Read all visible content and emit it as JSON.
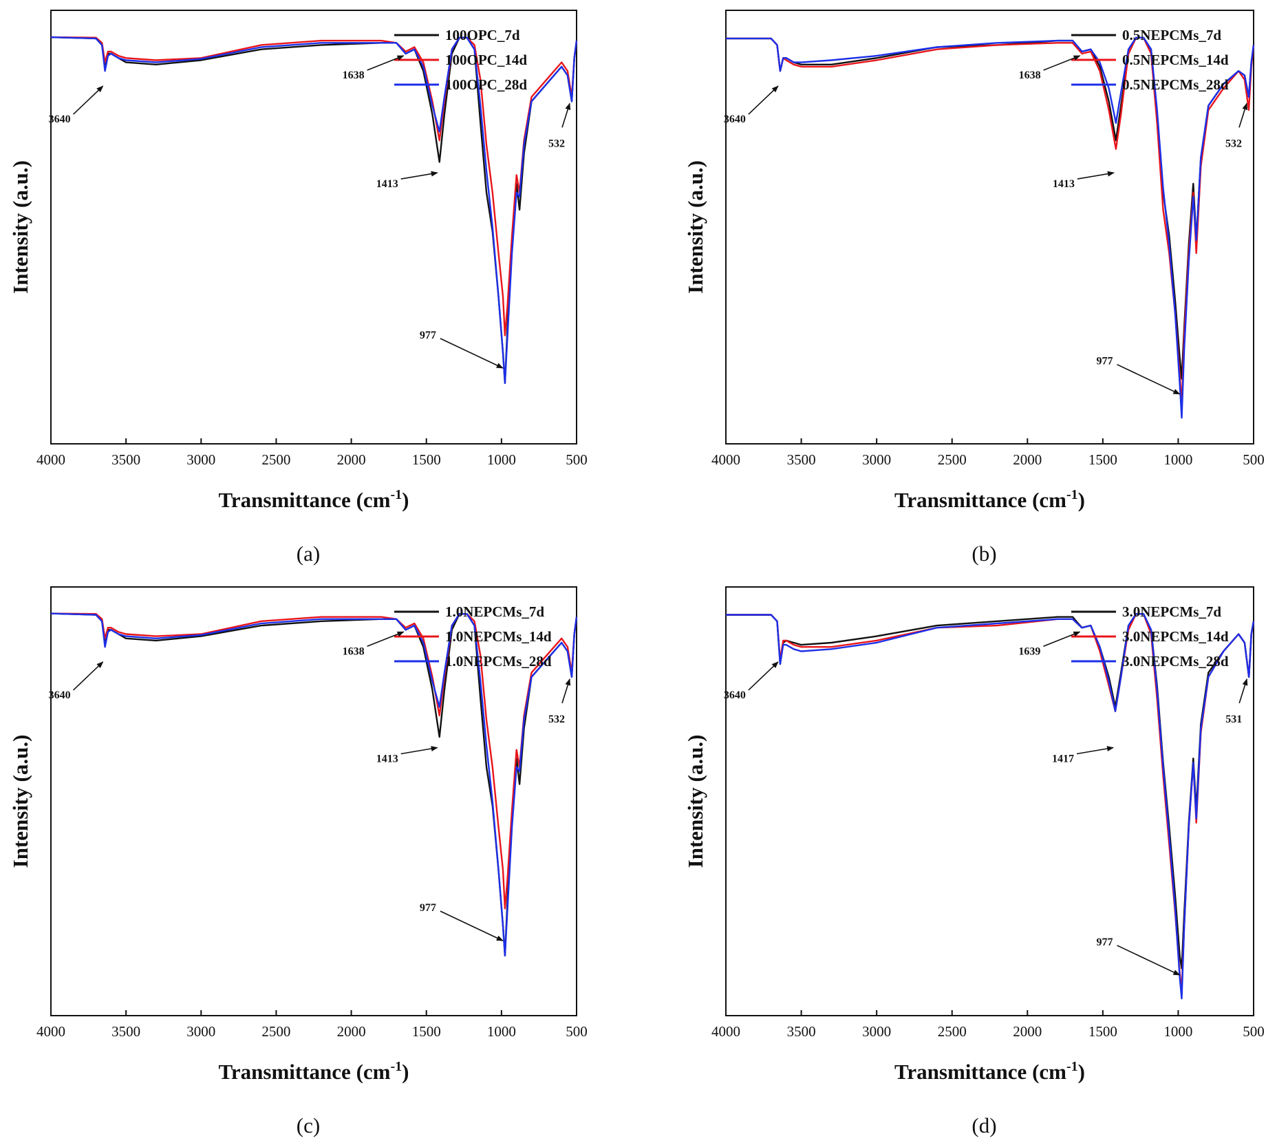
{
  "figure": {
    "panels": [
      "(a)",
      "(b)",
      "(c)",
      "(d)"
    ]
  },
  "colors": {
    "series_7d": "#111111",
    "series_14d": "#e8151b",
    "series_28d": "#1c2fe8"
  },
  "chart_data": [
    {
      "type": "line",
      "panel_label": "(a)",
      "xlabel": "Transmittance (cm",
      "xlabel_sup": "-1",
      "xlabel_close": ")",
      "ylabel": "Intensity (a.u.)",
      "xlim": [
        4000,
        500
      ],
      "ylim": [
        0,
        1
      ],
      "xticks": [
        "4000",
        "3500",
        "3000",
        "2500",
        "2000",
        "1500",
        "1000",
        "500"
      ],
      "legend": [
        "100OPC_7d",
        "100OPC_14d",
        "100OPC_28d"
      ],
      "annotations": [
        {
          "text": "3640",
          "x": 3640,
          "y": 0.83
        },
        {
          "text": "1638",
          "x": 1638,
          "y": 0.9
        },
        {
          "text": "1413",
          "x": 1413,
          "y": 0.63
        },
        {
          "text": "532",
          "x": 532,
          "y": 0.79
        },
        {
          "text": "977",
          "x": 977,
          "y": 0.17
        }
      ],
      "x": [
        4000,
        3700,
        3660,
        3640,
        3620,
        3600,
        3550,
        3500,
        3300,
        3000,
        2600,
        2200,
        1800,
        1700,
        1638,
        1580,
        1520,
        1460,
        1413,
        1380,
        1330,
        1280,
        1230,
        1180,
        1140,
        1100,
        1060,
        1020,
        990,
        977,
        960,
        930,
        900,
        880,
        850,
        800,
        700,
        600,
        560,
        532,
        515,
        500
      ],
      "series": [
        {
          "name": "100OPC_7d",
          "values": [
            0.938,
            0.935,
            0.92,
            0.87,
            0.9,
            0.9,
            0.89,
            0.88,
            0.875,
            0.885,
            0.91,
            0.92,
            0.925,
            0.925,
            0.9,
            0.91,
            0.86,
            0.76,
            0.65,
            0.76,
            0.9,
            0.937,
            0.937,
            0.91,
            0.74,
            0.58,
            0.49,
            0.34,
            0.21,
            0.14,
            0.27,
            0.46,
            0.6,
            0.54,
            0.67,
            0.79,
            0.83,
            0.87,
            0.85,
            0.79,
            0.89,
            0.93
          ]
        },
        {
          "name": "100OPC_14d",
          "values": [
            0.938,
            0.937,
            0.925,
            0.88,
            0.905,
            0.905,
            0.895,
            0.89,
            0.885,
            0.89,
            0.92,
            0.93,
            0.93,
            0.925,
            0.905,
            0.915,
            0.88,
            0.79,
            0.7,
            0.79,
            0.91,
            0.937,
            0.937,
            0.92,
            0.84,
            0.69,
            0.58,
            0.44,
            0.34,
            0.25,
            0.32,
            0.48,
            0.62,
            0.58,
            0.7,
            0.8,
            0.84,
            0.88,
            0.86,
            0.8,
            0.89,
            0.93
          ]
        },
        {
          "name": "100OPC_28d",
          "values": [
            0.938,
            0.935,
            0.92,
            0.86,
            0.895,
            0.9,
            0.89,
            0.885,
            0.88,
            0.888,
            0.915,
            0.925,
            0.925,
            0.925,
            0.9,
            0.91,
            0.87,
            0.78,
            0.72,
            0.8,
            0.91,
            0.937,
            0.937,
            0.91,
            0.78,
            0.63,
            0.5,
            0.34,
            0.21,
            0.14,
            0.25,
            0.44,
            0.58,
            0.57,
            0.69,
            0.79,
            0.83,
            0.87,
            0.85,
            0.79,
            0.89,
            0.93
          ]
        }
      ]
    },
    {
      "type": "line",
      "panel_label": "(b)",
      "xlabel": "Transmittance (cm",
      "xlabel_sup": "-1",
      "xlabel_close": ")",
      "ylabel": "Intensity (a.u.)",
      "xlim": [
        4000,
        500
      ],
      "ylim": [
        0,
        1
      ],
      "xticks": [
        "4000",
        "3500",
        "3000",
        "2500",
        "2000",
        "1500",
        "1000",
        "500"
      ],
      "legend": [
        "0.5NEPCMs_7d",
        "0.5NEPCMs_14d",
        "0.5NEPCMs_28d"
      ],
      "annotations": [
        {
          "text": "3640",
          "x": 3640,
          "y": 0.83
        },
        {
          "text": "1638",
          "x": 1638,
          "y": 0.9
        },
        {
          "text": "1413",
          "x": 1413,
          "y": 0.63
        },
        {
          "text": "532",
          "x": 532,
          "y": 0.79
        },
        {
          "text": "977",
          "x": 977,
          "y": 0.11
        }
      ],
      "x": [
        4000,
        3700,
        3660,
        3640,
        3620,
        3600,
        3550,
        3500,
        3300,
        3000,
        2600,
        2200,
        1800,
        1700,
        1638,
        1580,
        1520,
        1460,
        1413,
        1380,
        1330,
        1280,
        1230,
        1180,
        1140,
        1100,
        1060,
        1020,
        990,
        977,
        960,
        930,
        900,
        880,
        850,
        800,
        700,
        600,
        560,
        532,
        515,
        500
      ],
      "series": [
        {
          "name": "0.5NEPCMs_7d",
          "values": [
            0.935,
            0.935,
            0.92,
            0.86,
            0.89,
            0.89,
            0.88,
            0.875,
            0.875,
            0.89,
            0.915,
            0.92,
            0.93,
            0.93,
            0.905,
            0.91,
            0.87,
            0.79,
            0.7,
            0.78,
            0.9,
            0.937,
            0.937,
            0.91,
            0.76,
            0.58,
            0.48,
            0.33,
            0.2,
            0.15,
            0.27,
            0.46,
            0.6,
            0.47,
            0.66,
            0.78,
            0.83,
            0.86,
            0.85,
            0.8,
            0.88,
            0.92
          ]
        },
        {
          "name": "0.5NEPCMs_14d",
          "values": [
            0.935,
            0.935,
            0.92,
            0.86,
            0.89,
            0.885,
            0.875,
            0.87,
            0.87,
            0.885,
            0.91,
            0.92,
            0.925,
            0.925,
            0.9,
            0.905,
            0.86,
            0.77,
            0.68,
            0.76,
            0.9,
            0.937,
            0.937,
            0.9,
            0.74,
            0.54,
            0.44,
            0.3,
            0.16,
            0.09,
            0.25,
            0.44,
            0.58,
            0.44,
            0.64,
            0.77,
            0.82,
            0.86,
            0.84,
            0.77,
            0.87,
            0.92
          ]
        },
        {
          "name": "0.5NEPCMs_28d",
          "values": [
            0.935,
            0.935,
            0.92,
            0.86,
            0.89,
            0.89,
            0.88,
            0.88,
            0.885,
            0.895,
            0.915,
            0.925,
            0.93,
            0.93,
            0.905,
            0.91,
            0.88,
            0.82,
            0.74,
            0.81,
            0.91,
            0.937,
            0.937,
            0.91,
            0.77,
            0.59,
            0.46,
            0.3,
            0.14,
            0.06,
            0.22,
            0.42,
            0.57,
            0.47,
            0.66,
            0.78,
            0.83,
            0.86,
            0.85,
            0.8,
            0.88,
            0.92
          ]
        }
      ]
    },
    {
      "type": "line",
      "panel_label": "(c)",
      "xlabel": "Transmittance (cm",
      "xlabel_sup": "-1",
      "xlabel_close": ")",
      "ylabel": "Intensity (a.u.)",
      "xlim": [
        4000,
        500
      ],
      "ylim": [
        0,
        1
      ],
      "xticks": [
        "4000",
        "3500",
        "3000",
        "2500",
        "2000",
        "1500",
        "1000",
        "500"
      ],
      "legend": [
        "1.0NEPCMs_7d",
        "1.0NEPCMs_14d",
        "1.0NEPCMs_28d"
      ],
      "annotations": [
        {
          "text": "3640",
          "x": 3640,
          "y": 0.83
        },
        {
          "text": "1638",
          "x": 1638,
          "y": 0.9
        },
        {
          "text": "1413",
          "x": 1413,
          "y": 0.63
        },
        {
          "text": "532",
          "x": 532,
          "y": 0.79
        },
        {
          "text": "977",
          "x": 977,
          "y": 0.17
        }
      ],
      "x": [
        4000,
        3700,
        3660,
        3640,
        3620,
        3600,
        3550,
        3500,
        3300,
        3000,
        2600,
        2200,
        1800,
        1700,
        1638,
        1580,
        1520,
        1460,
        1413,
        1380,
        1330,
        1280,
        1230,
        1180,
        1140,
        1100,
        1060,
        1020,
        990,
        977,
        960,
        930,
        900,
        880,
        850,
        800,
        700,
        600,
        560,
        532,
        515,
        500
      ],
      "series": [
        {
          "name": "1.0NEPCMs_7d",
          "values": [
            0.938,
            0.935,
            0.92,
            0.87,
            0.9,
            0.9,
            0.89,
            0.88,
            0.875,
            0.885,
            0.91,
            0.92,
            0.925,
            0.925,
            0.9,
            0.91,
            0.86,
            0.76,
            0.65,
            0.76,
            0.9,
            0.937,
            0.937,
            0.91,
            0.74,
            0.58,
            0.49,
            0.34,
            0.21,
            0.14,
            0.27,
            0.46,
            0.6,
            0.54,
            0.67,
            0.79,
            0.83,
            0.87,
            0.85,
            0.79,
            0.89,
            0.93
          ]
        },
        {
          "name": "1.0NEPCMs_14d",
          "values": [
            0.938,
            0.937,
            0.925,
            0.88,
            0.905,
            0.905,
            0.895,
            0.89,
            0.885,
            0.89,
            0.92,
            0.93,
            0.93,
            0.925,
            0.905,
            0.915,
            0.88,
            0.79,
            0.7,
            0.79,
            0.91,
            0.937,
            0.937,
            0.92,
            0.84,
            0.69,
            0.58,
            0.44,
            0.34,
            0.25,
            0.32,
            0.48,
            0.62,
            0.58,
            0.7,
            0.8,
            0.84,
            0.88,
            0.86,
            0.8,
            0.89,
            0.93
          ]
        },
        {
          "name": "1.0NEPCMs_28d",
          "values": [
            0.938,
            0.935,
            0.92,
            0.86,
            0.895,
            0.9,
            0.89,
            0.885,
            0.88,
            0.888,
            0.915,
            0.925,
            0.925,
            0.925,
            0.9,
            0.91,
            0.87,
            0.78,
            0.72,
            0.8,
            0.91,
            0.937,
            0.937,
            0.91,
            0.78,
            0.63,
            0.5,
            0.34,
            0.21,
            0.14,
            0.25,
            0.44,
            0.58,
            0.57,
            0.69,
            0.79,
            0.83,
            0.87,
            0.85,
            0.79,
            0.89,
            0.93
          ]
        }
      ]
    },
    {
      "type": "line",
      "panel_label": "(d)",
      "xlabel": "Transmittance (cm",
      "xlabel_sup": "-1",
      "xlabel_close": ")",
      "ylabel": "Intensity (a.u.)",
      "xlim": [
        4000,
        500
      ],
      "ylim": [
        0,
        1
      ],
      "xticks": [
        "4000",
        "3500",
        "3000",
        "2500",
        "2000",
        "1500",
        "1000",
        "500"
      ],
      "legend": [
        "3.0NEPCMs_7d",
        "3.0NEPCMs_14d",
        "3.0NEPCMs_28d"
      ],
      "annotations": [
        {
          "text": "3640",
          "x": 3640,
          "y": 0.83
        },
        {
          "text": "1639",
          "x": 1639,
          "y": 0.9
        },
        {
          "text": "1417",
          "x": 1417,
          "y": 0.63
        },
        {
          "text": "531",
          "x": 531,
          "y": 0.79
        },
        {
          "text": "977",
          "x": 977,
          "y": 0.09
        }
      ],
      "x": [
        4000,
        3700,
        3660,
        3640,
        3620,
        3600,
        3550,
        3500,
        3300,
        3000,
        2600,
        2200,
        1800,
        1700,
        1639,
        1580,
        1520,
        1460,
        1417,
        1380,
        1330,
        1280,
        1230,
        1180,
        1140,
        1100,
        1060,
        1020,
        990,
        977,
        960,
        930,
        900,
        880,
        850,
        800,
        700,
        600,
        560,
        531,
        515,
        500
      ],
      "series": [
        {
          "name": "3.0NEPCMs_7d",
          "values": [
            0.935,
            0.935,
            0.92,
            0.82,
            0.87,
            0.875,
            0.87,
            0.865,
            0.87,
            0.885,
            0.91,
            0.92,
            0.93,
            0.93,
            0.905,
            0.91,
            0.86,
            0.79,
            0.72,
            0.8,
            0.91,
            0.937,
            0.937,
            0.9,
            0.77,
            0.59,
            0.44,
            0.28,
            0.14,
            0.11,
            0.24,
            0.45,
            0.6,
            0.48,
            0.68,
            0.8,
            0.85,
            0.89,
            0.87,
            0.79,
            0.89,
            0.92
          ]
        },
        {
          "name": "3.0NEPCMs_14d",
          "values": [
            0.935,
            0.935,
            0.92,
            0.83,
            0.875,
            0.875,
            0.865,
            0.86,
            0.86,
            0.875,
            0.905,
            0.91,
            0.925,
            0.925,
            0.905,
            0.91,
            0.85,
            0.77,
            0.71,
            0.79,
            0.9,
            0.937,
            0.937,
            0.89,
            0.74,
            0.56,
            0.4,
            0.24,
            0.1,
            0.06,
            0.21,
            0.44,
            0.59,
            0.45,
            0.66,
            0.79,
            0.85,
            0.89,
            0.87,
            0.79,
            0.89,
            0.92
          ]
        },
        {
          "name": "3.0NEPCMs_28d",
          "values": [
            0.935,
            0.935,
            0.92,
            0.82,
            0.865,
            0.865,
            0.855,
            0.85,
            0.855,
            0.87,
            0.905,
            0.915,
            0.925,
            0.925,
            0.905,
            0.91,
            0.86,
            0.78,
            0.71,
            0.79,
            0.91,
            0.937,
            0.937,
            0.9,
            0.76,
            0.58,
            0.42,
            0.25,
            0.09,
            0.04,
            0.21,
            0.44,
            0.59,
            0.46,
            0.67,
            0.79,
            0.85,
            0.89,
            0.87,
            0.79,
            0.89,
            0.92
          ]
        }
      ]
    }
  ]
}
